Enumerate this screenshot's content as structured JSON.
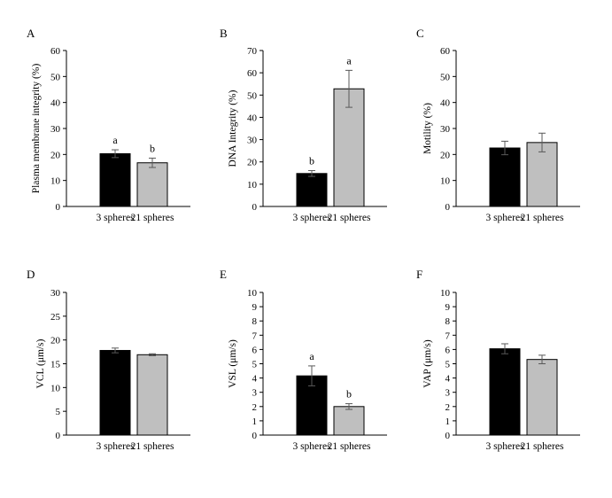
{
  "figure": {
    "categories": [
      "3 spheres",
      "21 spheres"
    ],
    "bar_colors": [
      "#000000",
      "#bfbfbf"
    ],
    "axis_color": "#000000",
    "errorbar_color": "#595959"
  },
  "chart_data": [
    {
      "panel": "A",
      "type": "bar",
      "ylabel": "Plasma membrane integrity (%)",
      "ylim": [
        0,
        60
      ],
      "yticks": [
        0,
        10,
        20,
        30,
        40,
        50,
        60
      ],
      "categories": [
        "3 spheres",
        "21 spheres"
      ],
      "values": [
        20.3,
        16.8
      ],
      "errors": [
        1.5,
        1.8
      ],
      "significance": [
        "a",
        "b"
      ]
    },
    {
      "panel": "B",
      "type": "bar",
      "ylabel": "DNA Integrity (%)",
      "ylim": [
        0,
        70
      ],
      "yticks": [
        0,
        10,
        20,
        30,
        40,
        50,
        60,
        70
      ],
      "categories": [
        "3 spheres",
        "21 spheres"
      ],
      "values": [
        14.8,
        52.8
      ],
      "errors": [
        1.3,
        8.3
      ],
      "significance": [
        "b",
        "a"
      ]
    },
    {
      "panel": "C",
      "type": "bar",
      "ylabel": "Motility (%)",
      "ylim": [
        0,
        60
      ],
      "yticks": [
        0,
        10,
        20,
        30,
        40,
        50,
        60
      ],
      "categories": [
        "3 spheres",
        "21 spheres"
      ],
      "values": [
        22.5,
        24.6
      ],
      "errors": [
        2.6,
        3.6
      ],
      "significance": [
        "",
        ""
      ]
    },
    {
      "panel": "D",
      "type": "bar",
      "ylabel": "VCL (μm/s)",
      "ylim": [
        0,
        30
      ],
      "yticks": [
        0,
        5,
        10,
        15,
        20,
        25,
        30
      ],
      "categories": [
        "3 spheres",
        "21 spheres"
      ],
      "values": [
        17.8,
        16.9
      ],
      "errors": [
        0.5,
        0.2
      ],
      "significance": [
        "",
        ""
      ]
    },
    {
      "panel": "E",
      "type": "bar",
      "ylabel": "VSL (μm/s)",
      "ylim": [
        0,
        10
      ],
      "yticks": [
        0,
        1,
        2,
        3,
        4,
        5,
        6,
        7,
        8,
        9,
        10
      ],
      "categories": [
        "3 spheres",
        "21 spheres"
      ],
      "values": [
        4.15,
        2.0
      ],
      "errors": [
        0.7,
        0.2
      ],
      "significance": [
        "a",
        "b"
      ]
    },
    {
      "panel": "F",
      "type": "bar",
      "ylabel": "VAP (μm/s)",
      "ylim": [
        0,
        10
      ],
      "yticks": [
        0,
        1,
        2,
        3,
        4,
        5,
        6,
        7,
        8,
        9,
        10
      ],
      "categories": [
        "3 spheres",
        "21 spheres"
      ],
      "values": [
        6.05,
        5.3
      ],
      "errors": [
        0.35,
        0.3
      ],
      "significance": [
        "",
        ""
      ]
    }
  ]
}
